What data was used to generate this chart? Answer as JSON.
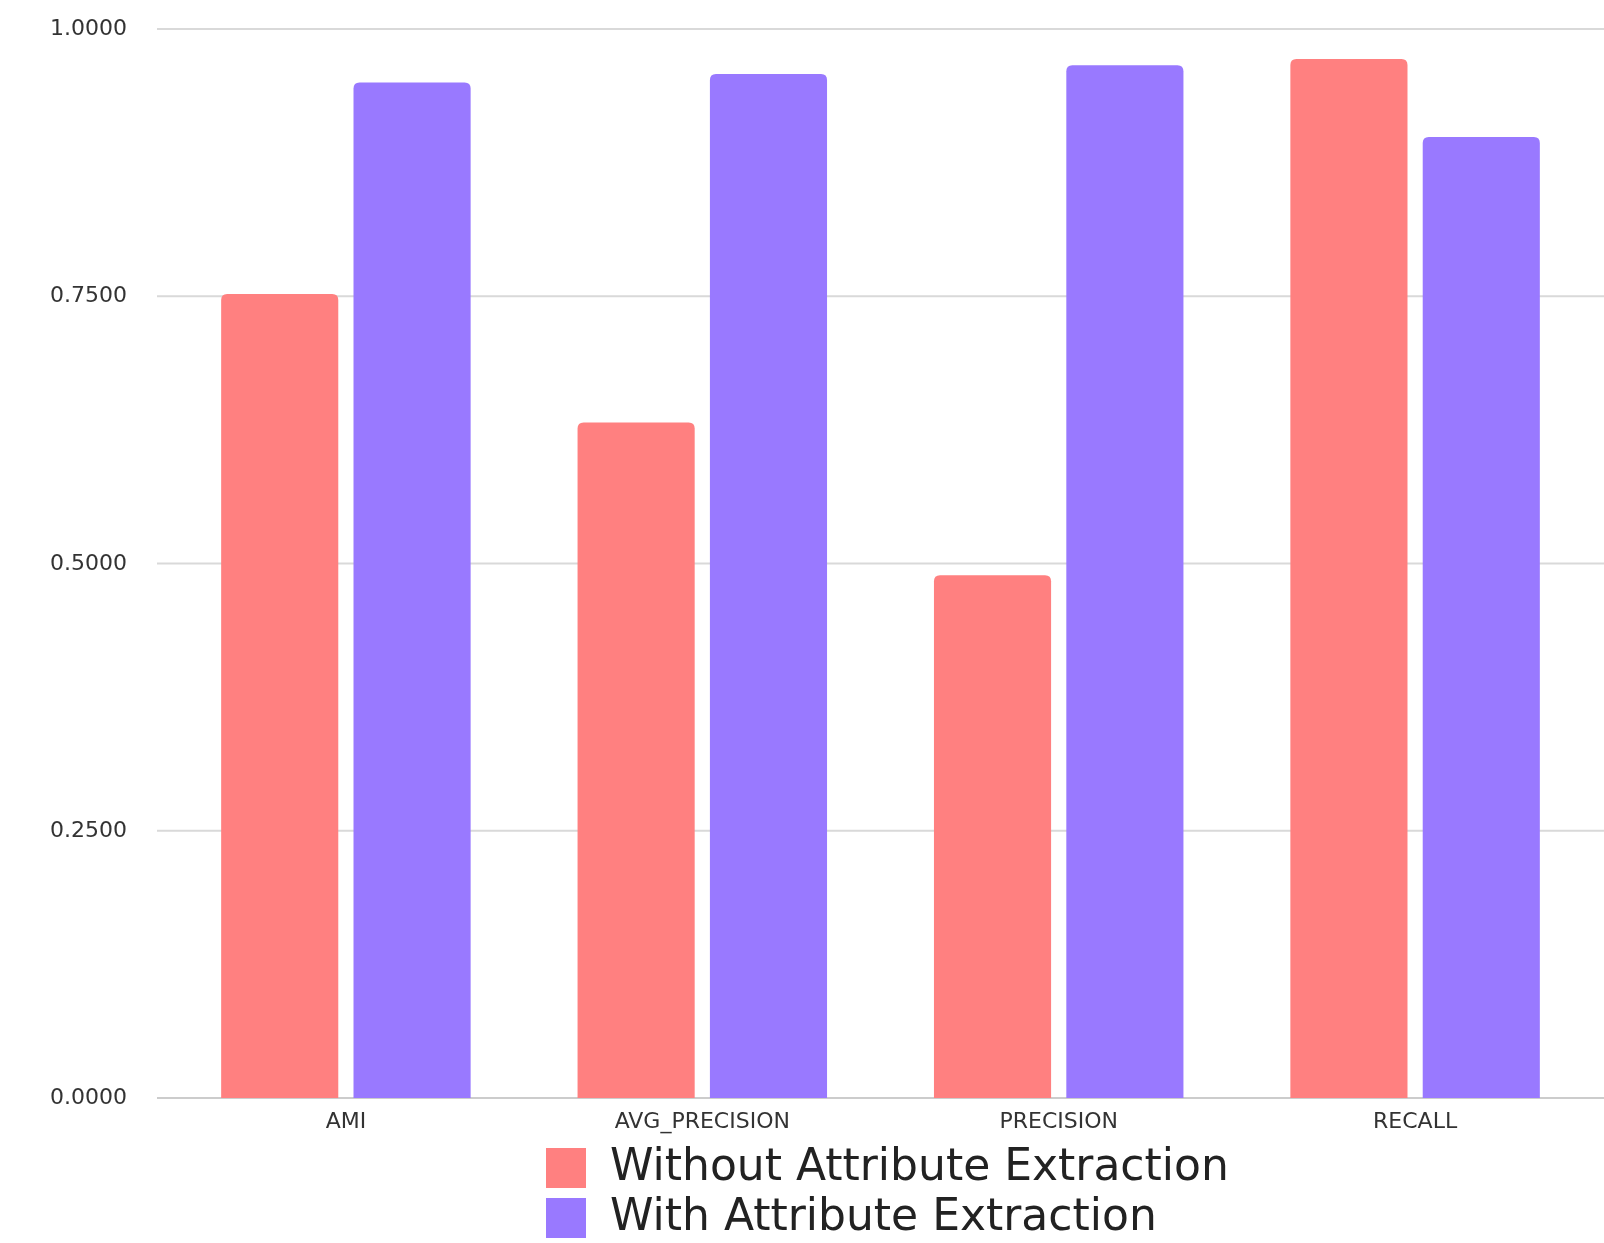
{
  "chart_data": {
    "type": "bar",
    "categories": [
      "AMI",
      "AVG_PRECISION",
      "PRECISION",
      "RECALL"
    ],
    "series": [
      {
        "name": "Without Attribute Extraction",
        "color": "#ff8080",
        "values": [
          0.752,
          0.632,
          0.489,
          0.972
        ]
      },
      {
        "name": "With Attribute Extraction",
        "color": "#9979ff",
        "values": [
          0.95,
          0.958,
          0.966,
          0.899
        ]
      }
    ],
    "ylim": [
      0,
      1
    ],
    "yticks": [
      {
        "value": 0,
        "label": "0.0000"
      },
      {
        "value": 0.25,
        "label": "0.2500"
      },
      {
        "value": 0.5,
        "label": "0.5000"
      },
      {
        "value": 0.75,
        "label": "0.7500"
      },
      {
        "value": 1,
        "label": "1.0000"
      }
    ],
    "grid": "y",
    "legend": "bottom"
  }
}
